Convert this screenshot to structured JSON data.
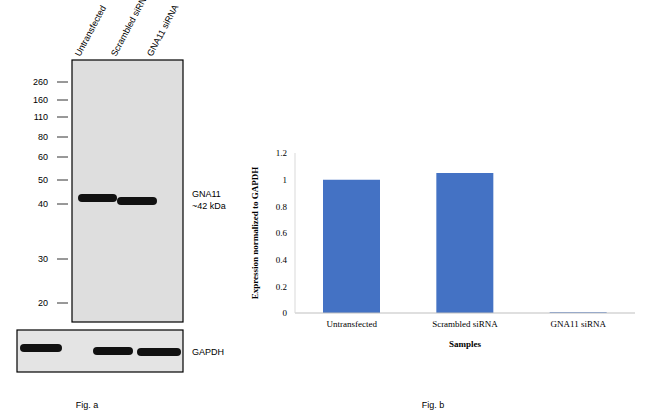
{
  "figure_labels": [
    "Fig. a",
    "Fig. b"
  ],
  "blot": {
    "lanes": [
      "Untransfected",
      "Scrambled siRNA",
      "GNA11 siRNA"
    ],
    "markers": [
      260,
      160,
      110,
      80,
      60,
      50,
      40,
      30,
      20
    ],
    "bands": [
      {
        "label": [
          "GNA11",
          "~42 kDa"
        ],
        "present": [
          true,
          true,
          false
        ]
      },
      {
        "label": [
          "GAPDH"
        ],
        "present": [
          true,
          true,
          true
        ]
      }
    ]
  },
  "chart_data": {
    "type": "bar",
    "categories": [
      "Untransfected",
      "Scrambled siRNA",
      "GNA11 siRNA"
    ],
    "values": [
      1,
      1.05,
      0.005
    ],
    "color": "#4472c4",
    "ylim": [
      0,
      1.2
    ],
    "yticks": [
      0,
      0.2,
      0.4,
      0.6,
      0.8,
      1,
      1.2
    ],
    "ylabel": "Expression normalized to GAPDH",
    "xlabel": "Samples",
    "grid": false
  }
}
